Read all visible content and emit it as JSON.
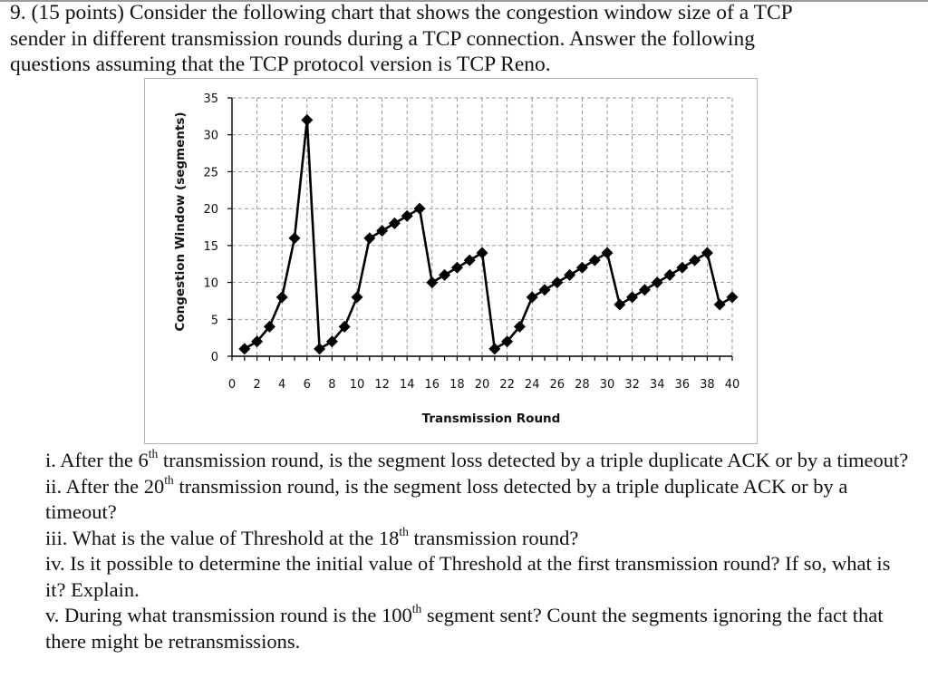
{
  "intro": {
    "lines": [
      "9. (15 points) Consider the following chart that shows the congestion window size of a TCP",
      "sender in different transmission rounds during a TCP connection. Answer the following",
      "questions assuming that the TCP protocol version is TCP Reno."
    ]
  },
  "questions": [
    {
      "pre": "i. After the 6",
      "sup": "th",
      "post": " transmission round, is the segment loss detected by a triple duplicate ACK or by a timeout?"
    },
    {
      "pre": "ii. After the 20",
      "sup": "th",
      "post": " transmission round, is the segment loss detected by a triple duplicate ACK or by a timeout?"
    },
    {
      "pre": "iii. What is the value of Threshold at the 18",
      "sup": "th",
      "post": " transmission round?"
    },
    {
      "pre": "iv. Is it possible to determine the initial value of Threshold at the first transmission round? If so, what is it? Explain.",
      "sup": "",
      "post": ""
    },
    {
      "pre": "v. During what transmission round is the 100",
      "sup": "th",
      "post": " segment sent? Count the segments ignoring the fact that there might be retransmissions."
    }
  ],
  "chart_data": {
    "type": "line",
    "title": "",
    "xlabel": "Transmission Round",
    "ylabel": "Congestion Window (segments)",
    "xlim": [
      0,
      40
    ],
    "ylim": [
      0,
      35
    ],
    "x_ticks": [
      0,
      2,
      4,
      6,
      8,
      10,
      12,
      14,
      16,
      18,
      20,
      22,
      24,
      26,
      28,
      30,
      32,
      34,
      36,
      38,
      40
    ],
    "y_ticks": [
      0,
      5,
      10,
      15,
      20,
      25,
      30,
      35
    ],
    "grid": true,
    "grid_style": "dashed",
    "legend": "none",
    "marker": "diamond",
    "line_color": "#000000",
    "series": [
      {
        "x": [
          1,
          2,
          3,
          4,
          5,
          6,
          7,
          8,
          9,
          10,
          11,
          12,
          13,
          14,
          15,
          16,
          17,
          18,
          19,
          20,
          21,
          22,
          23,
          24,
          25,
          26,
          27,
          28,
          29,
          30,
          31,
          32,
          33,
          34,
          35,
          36,
          37,
          38,
          39,
          40
        ],
        "values": [
          1,
          2,
          4,
          8,
          16,
          32,
          1,
          2,
          4,
          8,
          16,
          17,
          18,
          19,
          20,
          10,
          11,
          12,
          13,
          14,
          1,
          2,
          4,
          8,
          9,
          10,
          11,
          12,
          13,
          14,
          7,
          8,
          9,
          10,
          11,
          12,
          13,
          14,
          7,
          8
        ]
      }
    ]
  }
}
